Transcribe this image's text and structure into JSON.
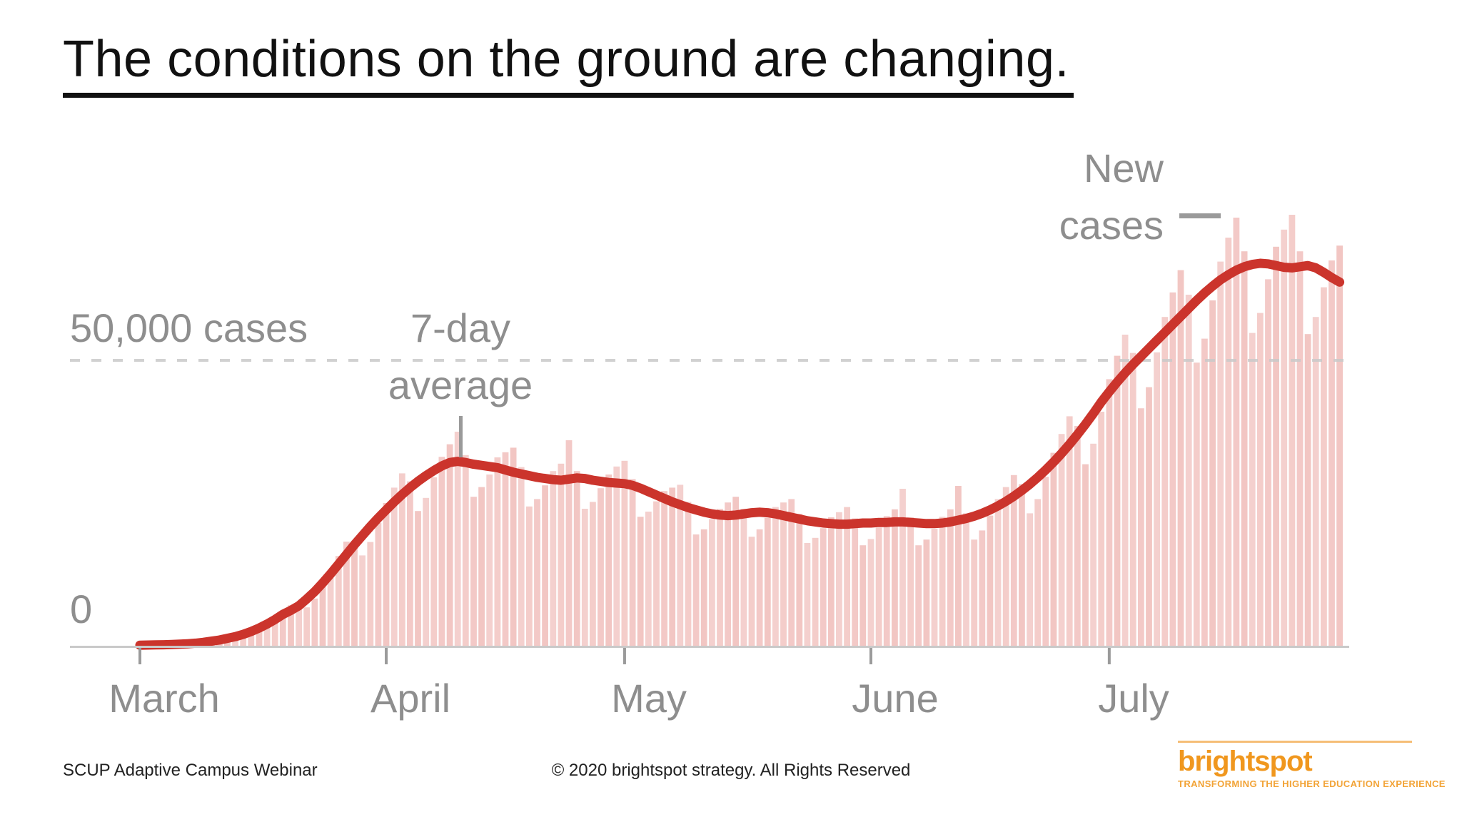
{
  "slide": {
    "title": "The conditions on the ground are changing.",
    "footer": {
      "left": "SCUP Adaptive Campus Webinar",
      "center": "© 2020 brightspot strategy. All Rights Reserved",
      "logo": {
        "name": "brightspot",
        "tagline": "TRANSFORMING THE HIGHER EDUCATION EXPERIENCE"
      }
    }
  },
  "chart_data": {
    "type": "bar",
    "description": "Daily new COVID-19 cases (bars) with 7-day average (line), early March through late July 2020",
    "start_date": "2020-03-01",
    "units": "thousands of cases per day",
    "x_tick_labels": [
      "March",
      "April",
      "May",
      "June",
      "July"
    ],
    "x_tick_day_indices": [
      0,
      31,
      61,
      92,
      122
    ],
    "ylim": [
      0,
      78
    ],
    "grid": "single dashed horizontal gridline at 50,000 cases",
    "gridline": {
      "value": 50,
      "label": "50,000 cases"
    },
    "baseline_label": "0",
    "annotations": {
      "bars_label": "New cases",
      "line_label": "7-day average"
    },
    "legend_position": "annotated callouts on chart",
    "series": [
      {
        "name": "New cases",
        "type": "bar",
        "values": [
          0.1,
          0.1,
          0.14,
          0.19,
          0.24,
          0.32,
          0.36,
          0.37,
          0.52,
          0.77,
          1.05,
          1.43,
          1.82,
          2.08,
          2.05,
          2.7,
          3.65,
          4.83,
          6.05,
          7.07,
          7.28,
          6.72,
          8.27,
          10.56,
          13.23,
          15.73,
          18.24,
          18.41,
          15.83,
          18.18,
          21.5,
          25.0,
          27.7,
          30.2,
          28.8,
          23.6,
          25.9,
          29.5,
          33.1,
          35.3,
          37.5,
          33.4,
          26.1,
          27.8,
          30.0,
          33.0,
          33.9,
          34.7,
          31.3,
          24.4,
          25.7,
          28.1,
          30.6,
          31.9,
          36.0,
          30.6,
          24.0,
          25.2,
          27.6,
          30.0,
          31.4,
          32.4,
          29.2,
          22.6,
          23.5,
          25.3,
          27.1,
          27.7,
          28.2,
          25.2,
          19.5,
          20.4,
          22.2,
          24.0,
          25.1,
          26.1,
          24.0,
          19.1,
          20.4,
          22.4,
          24.3,
          25.1,
          25.7,
          23.1,
          18.0,
          18.9,
          20.6,
          22.5,
          23.4,
          24.3,
          22.3,
          17.6,
          18.7,
          20.7,
          22.7,
          23.9,
          27.5,
          22.5,
          17.6,
          18.6,
          20.5,
          22.6,
          23.9,
          28.0,
          23.2,
          18.6,
          20.2,
          22.8,
          25.7,
          27.8,
          29.9,
          28.3,
          23.2,
          25.7,
          29.6,
          33.8,
          37.1,
          40.2,
          38.5,
          31.8,
          35.4,
          41.0,
          46.7,
          50.8,
          54.5,
          51.3,
          41.6,
          45.3,
          51.4,
          57.6,
          61.9,
          65.8,
          61.5,
          49.6,
          53.8,
          60.5,
          67.3,
          71.5,
          75.0,
          69.1,
          54.8,
          58.3,
          64.2,
          69.9,
          72.9,
          75.5,
          69.1,
          54.6,
          57.6,
          62.8,
          67.5,
          70.1
        ]
      },
      {
        "name": "7-day average",
        "type": "line",
        "values": [
          0.1,
          0.12,
          0.15,
          0.18,
          0.22,
          0.28,
          0.35,
          0.45,
          0.6,
          0.8,
          1.0,
          1.3,
          1.6,
          2.0,
          2.5,
          3.1,
          3.8,
          4.6,
          5.5,
          6.2,
          7.0,
          8.2,
          9.5,
          11.0,
          12.6,
          14.3,
          16.0,
          17.7,
          19.3,
          20.9,
          22.4,
          23.8,
          25.2,
          26.5,
          27.7,
          28.8,
          29.8,
          30.7,
          31.5,
          32.1,
          32.3,
          32.1,
          31.8,
          31.6,
          31.4,
          31.2,
          30.8,
          30.4,
          30.1,
          29.8,
          29.5,
          29.3,
          29.1,
          29.0,
          29.2,
          29.4,
          29.3,
          29.0,
          28.8,
          28.6,
          28.5,
          28.4,
          28.1,
          27.6,
          27.0,
          26.4,
          25.8,
          25.2,
          24.7,
          24.2,
          23.8,
          23.4,
          23.1,
          22.9,
          22.8,
          22.9,
          23.1,
          23.3,
          23.4,
          23.3,
          23.1,
          22.8,
          22.5,
          22.2,
          21.9,
          21.7,
          21.5,
          21.4,
          21.3,
          21.3,
          21.4,
          21.5,
          21.5,
          21.6,
          21.6,
          21.7,
          21.7,
          21.6,
          21.5,
          21.4,
          21.4,
          21.5,
          21.7,
          22.0,
          22.3,
          22.7,
          23.2,
          23.8,
          24.5,
          25.3,
          26.2,
          27.2,
          28.3,
          29.5,
          30.8,
          32.2,
          33.7,
          35.3,
          37.0,
          38.8,
          40.7,
          42.7,
          44.5,
          46.2,
          47.8,
          49.3,
          50.7,
          52.1,
          53.5,
          54.9,
          56.3,
          57.7,
          59.1,
          60.5,
          61.8,
          63.0,
          64.1,
          65.0,
          65.8,
          66.4,
          66.8,
          67.0,
          66.9,
          66.6,
          66.3,
          66.2,
          66.4,
          66.6,
          66.2,
          65.4,
          64.5,
          63.7
        ]
      }
    ]
  },
  "colors": {
    "bar": "#F2C6C3",
    "line": "#CB342C",
    "axis_gray": "#C9C9C9",
    "tick_gray": "#9A9A9A",
    "label_gray": "#8E8E8E",
    "grid_dash": "#C9C9C9",
    "title": "#111111",
    "logo_orange": "#F0971E",
    "logo_tagline": "#F2A336",
    "logo_rule": "#F5BE77"
  }
}
